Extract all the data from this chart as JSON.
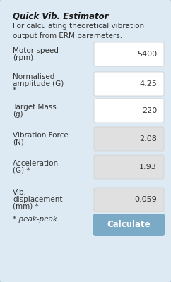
{
  "title": "Quick Vib. Estimator",
  "subtitle": "For calculating theoretical vibration\noutput from ERM parameters.",
  "bg_color": "#ddeaf3",
  "input_bg": "#ffffff",
  "output_bg": "#e0e0e0",
  "button_bg": "#7aaac5",
  "button_text": "Calculate",
  "button_text_color": "#ffffff",
  "border_color": "#b8cfe0",
  "text_color": "#333333",
  "title_color": "#1a1a1a",
  "fields": [
    {
      "label": "Motor speed\n(rpm)",
      "value": "5400",
      "editable": true
    },
    {
      "label": "Normalised\namplitude (G)\n*",
      "value": "4.25",
      "editable": true
    },
    {
      "label": "Target Mass\n(g)",
      "value": "220",
      "editable": true
    },
    {
      "label": "Vibration Force\n(N)",
      "value": "2.08",
      "editable": false
    },
    {
      "label": "Acceleration\n(G) *",
      "value": "1.93",
      "editable": false
    },
    {
      "label": "Vib.\ndisplacement\n(mm) *",
      "value": "0.059",
      "editable": false
    }
  ],
  "footnote": "* peak-peak"
}
